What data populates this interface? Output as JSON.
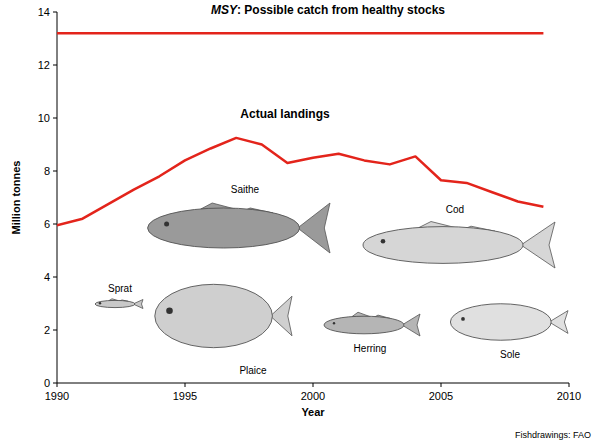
{
  "chart_data": {
    "type": "line",
    "x_label": "Year",
    "y_label": "Million tonnes",
    "x": [
      1990,
      1991,
      1992,
      1993,
      1994,
      1995,
      1996,
      1997,
      1998,
      1999,
      2000,
      2001,
      2002,
      2003,
      2004,
      2005,
      2006,
      2007,
      2008,
      2009
    ],
    "series": [
      {
        "name": "MSY: Possible catch from healthy stocks",
        "color": "#e3241b",
        "values": [
          13.2,
          13.2,
          13.2,
          13.2,
          13.2,
          13.2,
          13.2,
          13.2,
          13.2,
          13.2,
          13.2,
          13.2,
          13.2,
          13.2,
          13.2,
          13.2,
          13.2,
          13.2,
          13.2,
          13.2
        ]
      },
      {
        "name": "Actual landings",
        "color": "#e3241b",
        "values": [
          5.95,
          6.2,
          6.75,
          7.3,
          7.8,
          8.4,
          8.85,
          9.25,
          9.0,
          8.3,
          8.5,
          8.65,
          8.4,
          8.25,
          8.55,
          7.65,
          7.55,
          7.2,
          6.85,
          6.65
        ]
      }
    ],
    "xlim": [
      1990,
      2010
    ],
    "xticks": [
      1990,
      1995,
      2000,
      2005,
      2010
    ],
    "ylim": [
      0,
      14
    ],
    "yticks": [
      0,
      2,
      4,
      6,
      8,
      10,
      12,
      14
    ],
    "grid": false,
    "annotations": [
      "Saithe",
      "Cod",
      "Sprat",
      "Plaice",
      "Herring",
      "Sole"
    ],
    "source": "Fishdrawings: FAO"
  }
}
